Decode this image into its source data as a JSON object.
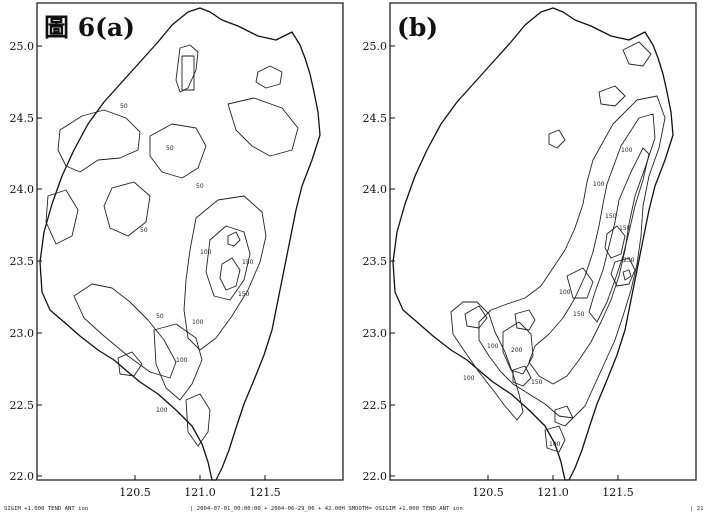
{
  "figure": {
    "panels": [
      {
        "id": "a",
        "label": "圖 6(a)",
        "y_ticks": [
          "25.0",
          "24.5",
          "24.0",
          "23.5",
          "23.0",
          "22.5",
          "22.0"
        ],
        "x_ticks": [
          "120.5",
          "121.0",
          "121.5"
        ],
        "contour_labels": [
          "50",
          "50",
          "50",
          "50",
          "50",
          "100",
          "100",
          "150",
          "150",
          "100",
          "100"
        ]
      },
      {
        "id": "b",
        "label": "(b)",
        "y_ticks": [
          "25.0",
          "24.5",
          "24.0",
          "23.5",
          "23.0",
          "22.5",
          "22.0"
        ],
        "x_ticks": [
          "120.5",
          "121.0",
          "121.5"
        ],
        "contour_labels": [
          "100",
          "100",
          "150",
          "150",
          "250",
          "100",
          "150",
          "200",
          "100",
          "150",
          "100",
          "100"
        ]
      }
    ],
    "footer": {
      "left": "SIGIM   +1.000   TEND ANT  ion",
      "middle": "|  2004-07-01_00:00:00 + 2004-06-29_06 + 42.00H  SMOOTH= OSIGIM   +1.000   TEND ANT  ion",
      "right": "|  21"
    }
  }
}
